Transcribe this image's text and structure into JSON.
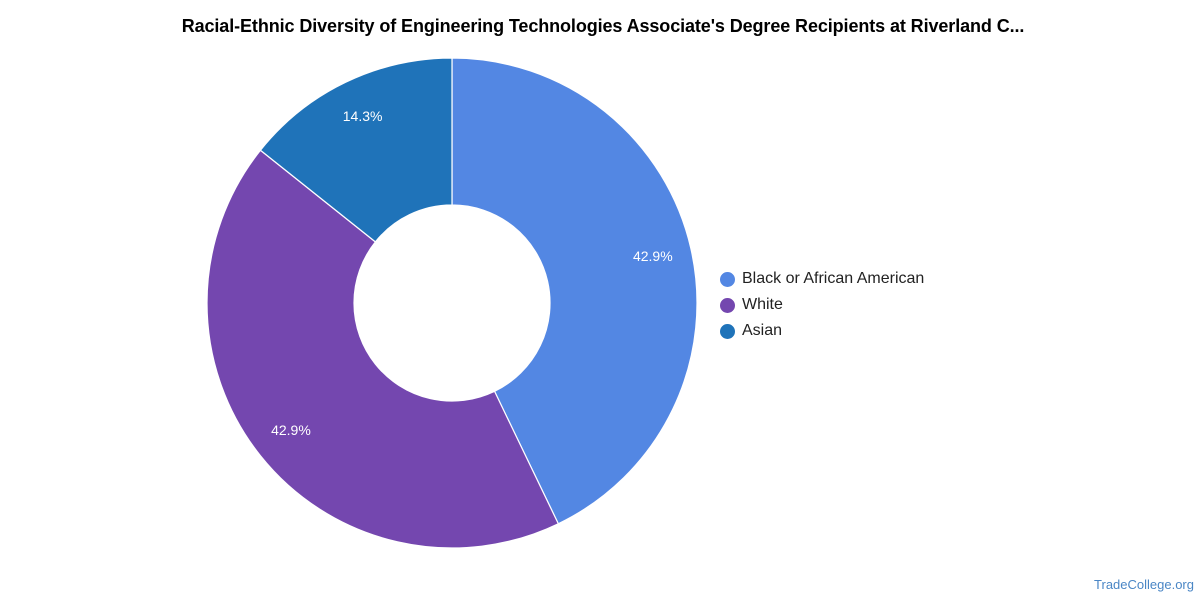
{
  "chart_data": {
    "type": "pie",
    "title": "Racial-Ethnic Diversity of Engineering Technologies Associate's Degree Recipients at Riverland C...",
    "categories": [
      "Black or African American",
      "White",
      "Asian"
    ],
    "values": [
      42.9,
      42.9,
      14.3
    ],
    "value_labels": [
      "42.9%",
      "42.9%",
      "14.3%"
    ],
    "colors": [
      "#5387e3",
      "#7447af",
      "#1f73b9"
    ],
    "donut": true,
    "legend_position": "right"
  },
  "footer": {
    "source": "TradeCollege.org"
  }
}
